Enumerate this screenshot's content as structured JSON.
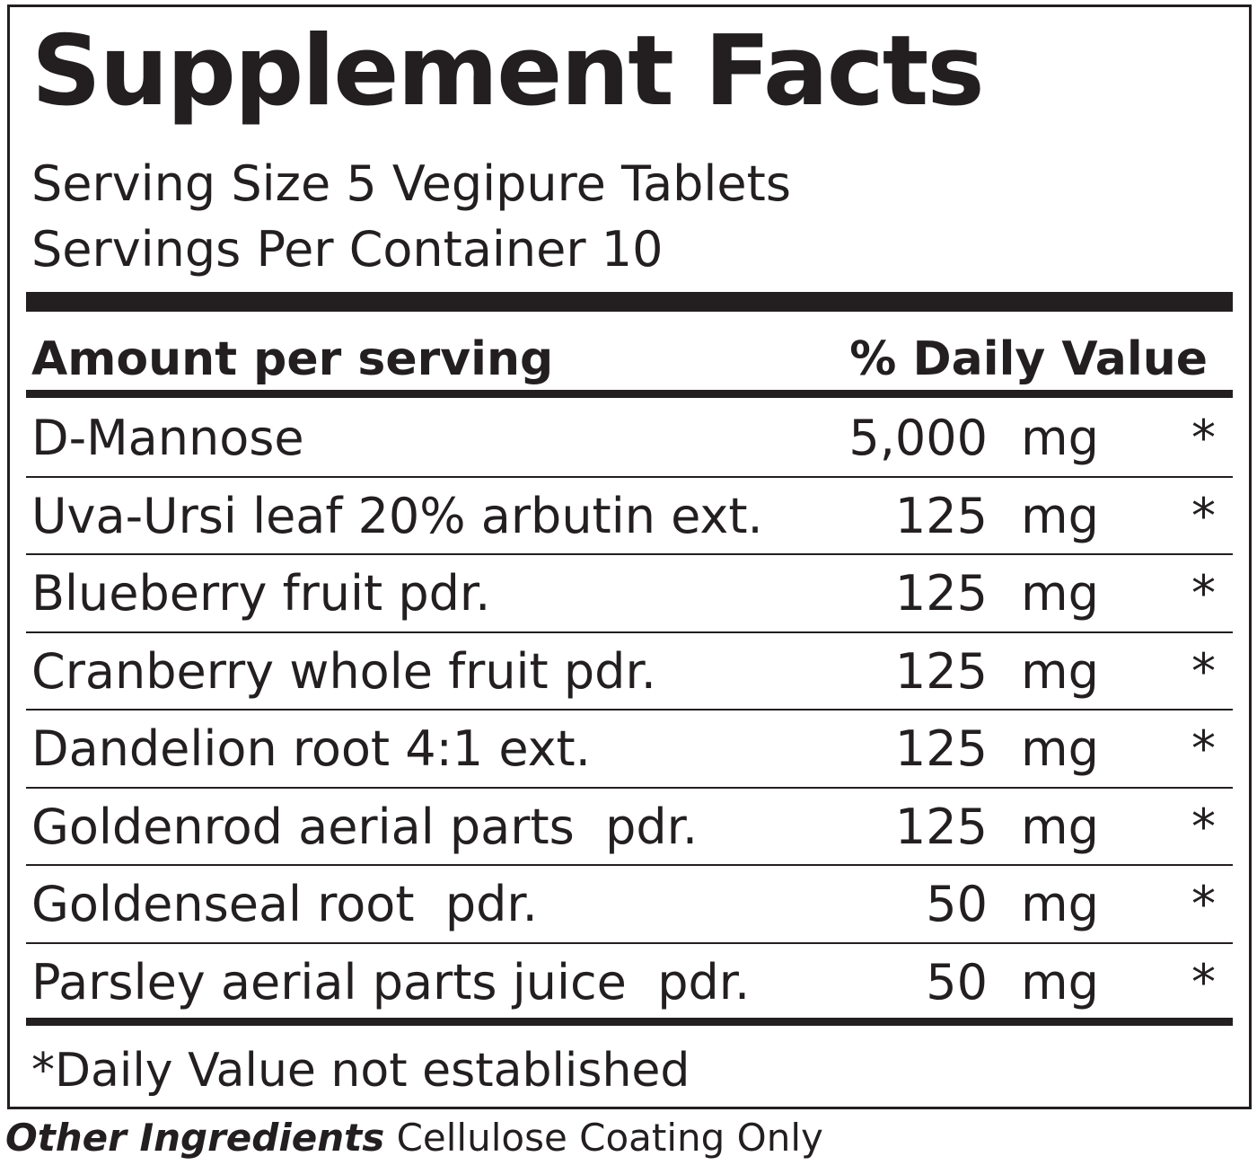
{
  "header": {
    "title": "Supplement Facts",
    "serving_size": "Serving Size 5 Vegipure Tablets",
    "servings_per_container": "Servings Per Container 10"
  },
  "table": {
    "header": [
      "Amount per serving",
      "% Daily Value"
    ],
    "rows": [
      [
        "D-Mannose",
        "5,000",
        "mg",
        "*"
      ],
      [
        "Uva-Ursi leaf 20% arbutin ext.",
        "125",
        "mg",
        "*"
      ],
      [
        "Blueberry fruit pdr.",
        "125",
        "mg",
        "*"
      ],
      [
        "Cranberry whole fruit pdr.",
        "125",
        "mg",
        "*"
      ],
      [
        "Dandelion root 4:1 ext.",
        "125",
        "mg",
        "*"
      ],
      [
        "Goldenrod aerial parts  pdr.",
        "125",
        "mg",
        "*"
      ],
      [
        "Goldenseal root  pdr.",
        "50",
        "mg",
        "*"
      ],
      [
        "Parsley aerial parts juice  pdr.",
        "50",
        "mg",
        "*"
      ]
    ]
  },
  "footnote": "*Daily Value not established",
  "other_ingredients": {
    "label": "Other Ingredients",
    "text": "Cellulose Coating Only"
  }
}
